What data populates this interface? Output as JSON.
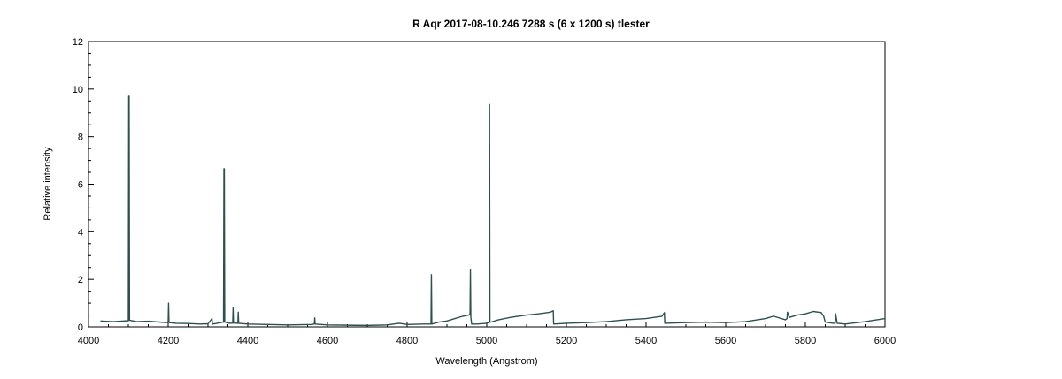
{
  "chart_data": {
    "type": "line",
    "title": "R Aqr  2017-08-10.246  7288 s (6 x 1200 s)  tlester",
    "xlabel": "Wavelength (Angstrom)",
    "ylabel": "Relative intensity",
    "xlim": [
      4000,
      6000
    ],
    "ylim": [
      0,
      12
    ],
    "xticks": [
      4000,
      4200,
      4400,
      4600,
      4800,
      5000,
      5200,
      5400,
      5600,
      5800,
      6000
    ],
    "yticks": [
      0,
      2,
      4,
      6,
      8,
      10,
      12
    ],
    "grid": false,
    "legend": "none",
    "line_color": "#2f4f4f",
    "series": [
      {
        "x": [
          4030,
          4060,
          4080,
          4100,
          4101,
          4102,
          4103,
          4120,
          4150,
          4180,
          4200,
          4201,
          4202,
          4203,
          4220,
          4250,
          4280,
          4300,
          4310,
          4311,
          4312,
          4320,
          4339,
          4340,
          4341,
          4342,
          4355,
          4362,
          4363,
          4364,
          4375,
          4376,
          4377,
          4400,
          4450,
          4500,
          4560,
          4567,
          4568,
          4569,
          4600,
          4650,
          4700,
          4750,
          4780,
          4800,
          4840,
          4860,
          4861,
          4862,
          4880,
          4900,
          4920,
          4940,
          4955,
          4958,
          4959,
          4960,
          4962,
          4975,
          5000,
          5006,
          5007,
          5008,
          5010,
          5030,
          5060,
          5100,
          5130,
          5160,
          5167,
          5168,
          5200,
          5250,
          5300,
          5350,
          5400,
          5440,
          5446,
          5447,
          5500,
          5550,
          5600,
          5650,
          5700,
          5720,
          5750,
          5754,
          5755,
          5760,
          5780,
          5800,
          5820,
          5840,
          5846,
          5850,
          5870,
          5875,
          5876,
          5880,
          5900,
          5950,
          6000
        ],
        "y": [
          0.25,
          0.22,
          0.24,
          0.26,
          9.7,
          9.7,
          0.28,
          0.22,
          0.24,
          0.2,
          0.18,
          1.0,
          0.2,
          0.18,
          0.15,
          0.14,
          0.12,
          0.13,
          0.35,
          0.12,
          0.12,
          0.14,
          0.2,
          6.65,
          6.65,
          0.2,
          0.15,
          0.16,
          0.8,
          0.16,
          0.15,
          0.62,
          0.15,
          0.12,
          0.1,
          0.08,
          0.1,
          0.12,
          0.38,
          0.12,
          0.08,
          0.07,
          0.06,
          0.08,
          0.15,
          0.1,
          0.12,
          0.12,
          2.2,
          0.12,
          0.2,
          0.25,
          0.35,
          0.45,
          0.5,
          0.55,
          2.4,
          0.4,
          0.12,
          0.12,
          0.15,
          0.2,
          9.35,
          0.2,
          0.2,
          0.3,
          0.4,
          0.5,
          0.55,
          0.62,
          0.68,
          0.12,
          0.15,
          0.18,
          0.22,
          0.3,
          0.35,
          0.45,
          0.6,
          0.15,
          0.18,
          0.2,
          0.18,
          0.22,
          0.35,
          0.45,
          0.3,
          0.35,
          0.62,
          0.4,
          0.5,
          0.55,
          0.65,
          0.6,
          0.45,
          0.2,
          0.15,
          0.15,
          0.55,
          0.15,
          0.12,
          0.22,
          0.35
        ]
      }
    ]
  }
}
